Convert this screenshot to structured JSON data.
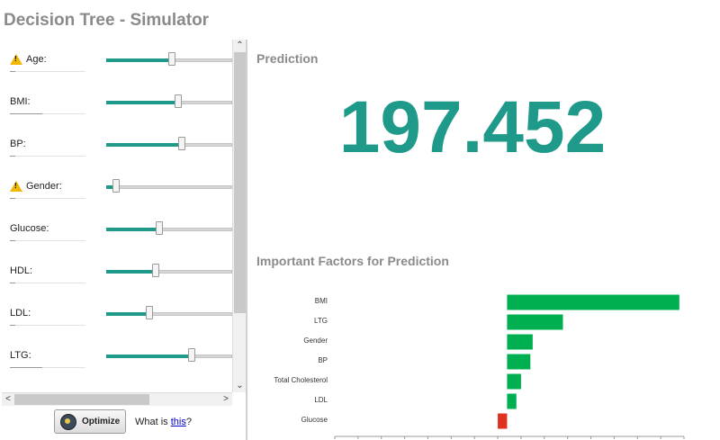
{
  "title": "Decision Tree - Simulator",
  "variables": [
    {
      "label": "Age:",
      "warning": true,
      "fill": 0.52
    },
    {
      "label": "BMI:",
      "warning": false,
      "fill": 0.57
    },
    {
      "label": "BP:",
      "warning": false,
      "fill": 0.6
    },
    {
      "label": "Gender:",
      "warning": true,
      "fill": 0.08
    },
    {
      "label": "Glucose:",
      "warning": false,
      "fill": 0.42
    },
    {
      "label": "HDL:",
      "warning": false,
      "fill": 0.39
    },
    {
      "label": "LDL:",
      "warning": false,
      "fill": 0.34
    },
    {
      "label": "LTG:",
      "warning": false,
      "fill": 0.68
    }
  ],
  "optimize_label": "Optimize",
  "what_is_prefix": "What is ",
  "what_is_link": "this",
  "what_is_suffix": "?",
  "prediction_heading": "Prediction",
  "prediction_value": "197.452",
  "factors_heading": "Important Factors for Prediction",
  "colors": {
    "accent": "#1f9a8a",
    "positive": "#00b050",
    "negative": "#e0301e"
  },
  "chart_data": {
    "type": "bar",
    "orientation": "horizontal",
    "categories": [
      "BMI",
      "LTG",
      "Gender",
      "BP",
      "Total Cholesterol",
      "LDL",
      "Glucose"
    ],
    "values": [
      37,
      12,
      5.5,
      5,
      3,
      2,
      -2
    ],
    "xlim": [
      -37,
      38
    ]
  }
}
